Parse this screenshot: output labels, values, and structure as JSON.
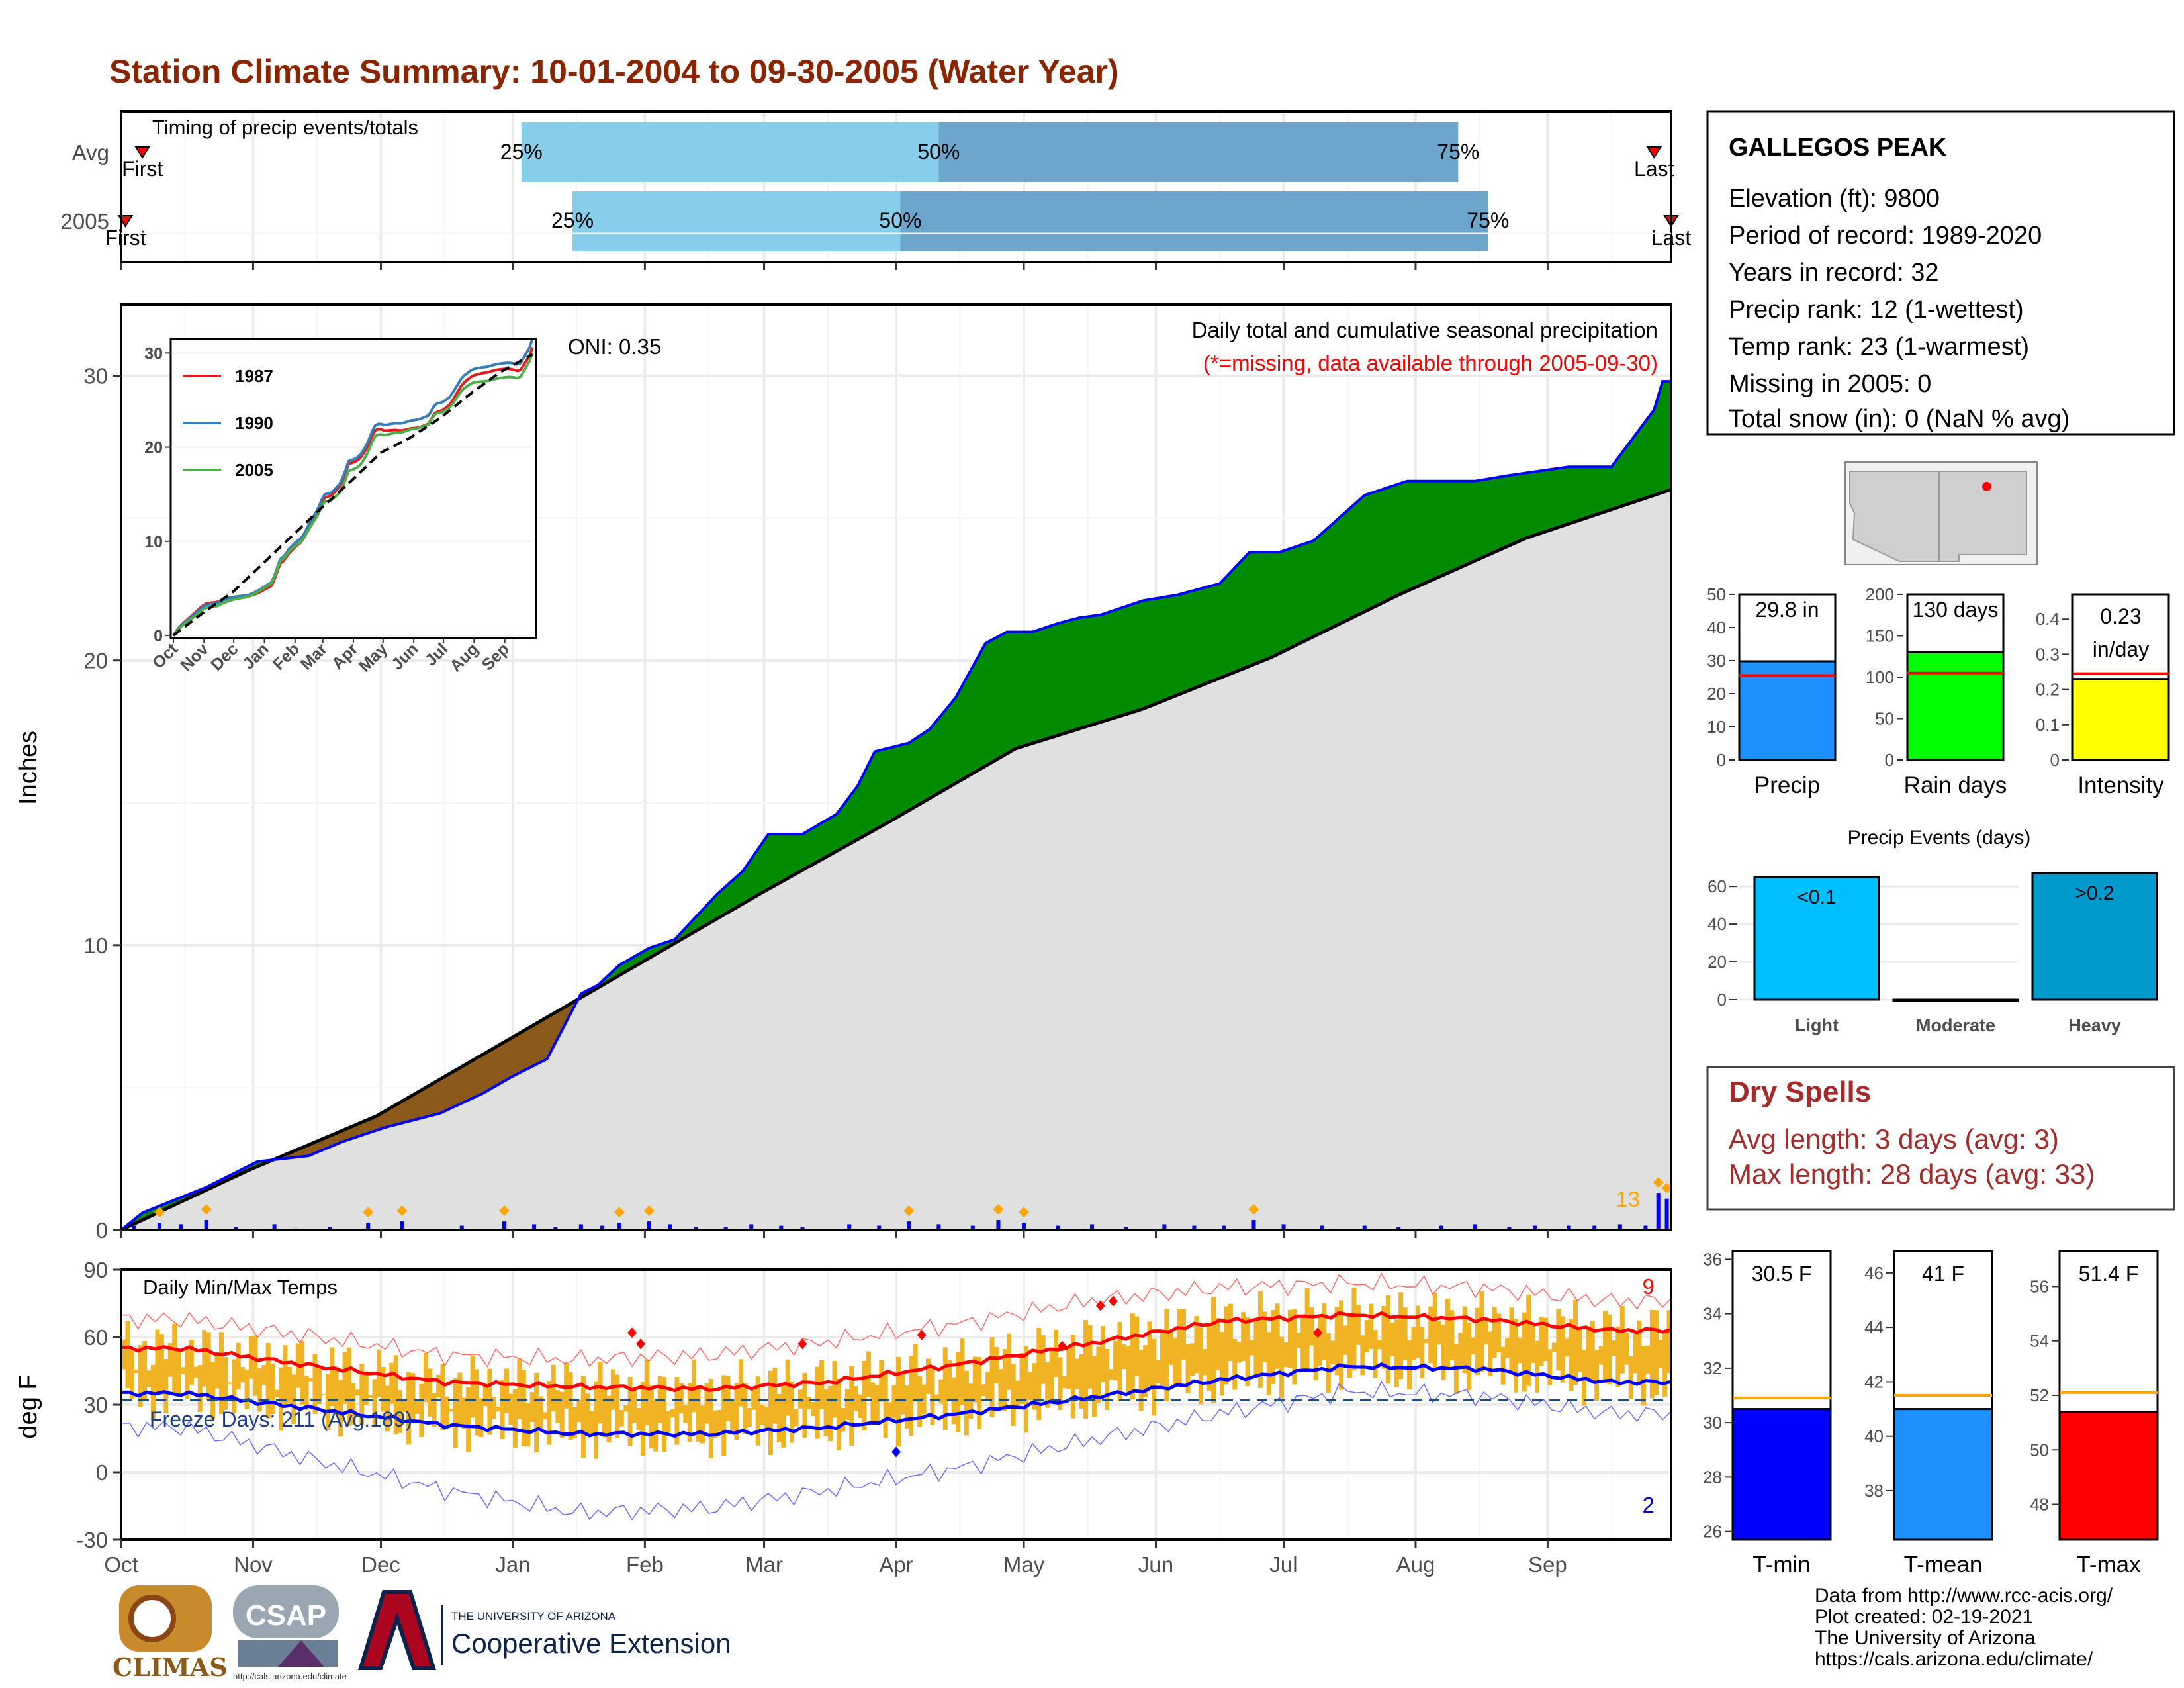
{
  "page": {
    "title": "Station Climate Summary: 10-01-2004 to 09-30-2005 (Water Year)"
  },
  "timing": {
    "label": "Timing of precip events/totals",
    "rows": [
      {
        "name": "Avg",
        "first_day": 5,
        "last_day": 360,
        "p25": 94,
        "p50": 192,
        "p75": 314,
        "first_label": "First",
        "last_label": "Last",
        "p25_label": "25%",
        "p50_label": "50%",
        "p75_label": "75%"
      },
      {
        "name": "2005",
        "first_day": 1,
        "last_day": 364,
        "p25": 106,
        "p50": 183,
        "p75": 321,
        "first_label": "First",
        "last_label": "Last",
        "p25_label": "25%",
        "p50_label": "50%",
        "p75_label": "75%"
      }
    ]
  },
  "precip_panel": {
    "ylabel": "Inches",
    "yticks": [
      0,
      10,
      20,
      30
    ],
    "ylim": [
      0,
      32.5
    ],
    "oni": "ONI: 0.35",
    "note1": "Daily total and cumulative seasonal precipitation",
    "note2": "(*=missing, data available through 2005-09-30)",
    "max_daily_label": "13"
  },
  "inset": {
    "xticks": [
      "Oct",
      "Nov",
      "Dec",
      "Jan",
      "Feb",
      "Mar",
      "Apr",
      "May",
      "Jun",
      "Jul",
      "Aug",
      "Sep"
    ],
    "yticks": [
      0,
      10,
      20,
      30
    ],
    "legend": [
      {
        "name": "1987",
        "color": "#e41a1c"
      },
      {
        "name": "1990",
        "color": "#377eb8"
      },
      {
        "name": "2005",
        "color": "#4daf4a"
      }
    ]
  },
  "temp_panel": {
    "ylabel": "deg F",
    "yticks": [
      -30,
      0,
      30,
      60,
      90
    ],
    "label": "Daily Min/Max Temps",
    "freeze": "Freeze Days: 211 (Avg:189)",
    "max_count": "9",
    "min_count": "2",
    "months": [
      "Oct",
      "Nov",
      "Dec",
      "Jan",
      "Feb",
      "Mar",
      "Apr",
      "May",
      "Jun",
      "Jul",
      "Aug",
      "Sep"
    ]
  },
  "station": {
    "name": "GALLEGOS PEAK",
    "lines": [
      "Elevation (ft): 9800",
      "Period of record: 1989-2020",
      "Years in record: 32",
      "Precip rank: 12 (1-wettest)",
      "Temp rank: 23 (1-warmest)",
      "Missing in 2005: 0",
      "Total snow (in): 0 (NaN % avg)"
    ]
  },
  "summary_bars": [
    {
      "label": "Precip",
      "value": 29.8,
      "text": "29.8 in",
      "avg": 25.5,
      "ymax": 50,
      "yticks": [
        0,
        10,
        20,
        30,
        40,
        50
      ],
      "color": "#1e90ff"
    },
    {
      "label": "Rain days",
      "value": 130,
      "text": "130 days",
      "avg": 105,
      "ymax": 200,
      "yticks": [
        0,
        50,
        100,
        150,
        200
      ],
      "color": "#00ff00"
    },
    {
      "label": "Intensity",
      "value": 0.23,
      "text": "0.23 in/day",
      "avg": 0.245,
      "ymax": 0.47,
      "yticks": [
        0.0,
        0.1,
        0.2,
        0.3,
        0.4
      ],
      "color": "#ffff00"
    }
  ],
  "events": {
    "title": "Precip Events (days)",
    "yticks": [
      0,
      20,
      40,
      60
    ],
    "bars": [
      {
        "label": "Light",
        "value": 65,
        "text": "<0.1",
        "color": "#00bfff"
      },
      {
        "label": "Moderate",
        "value": 0,
        "text": "",
        "color": "#1e90ff"
      },
      {
        "label": "Heavy",
        "value": 67,
        "text": ">0.2",
        "color": "#009acd"
      }
    ]
  },
  "dry_spells": {
    "title": "Dry Spells",
    "avg": "Avg length: 3 days (avg: 3)",
    "max": "Max length: 28 days (avg: 33)"
  },
  "temp_bars": [
    {
      "label": "T-min",
      "value": 30.5,
      "text": "30.5 F",
      "avg": 30.9,
      "ymin": 25.7,
      "ymax": 36.3,
      "yticks": [
        26,
        28,
        30,
        32,
        34,
        36
      ],
      "color": "#0000ff"
    },
    {
      "label": "T-mean",
      "value": 41,
      "text": "41 F",
      "avg": 41.5,
      "ymin": 36.2,
      "ymax": 46.8,
      "yticks": [
        38,
        40,
        42,
        44,
        46
      ],
      "color": "#1e90ff"
    },
    {
      "label": "T-max",
      "value": 51.4,
      "text": "51.4 F",
      "avg": 52.1,
      "ymin": 46.7,
      "ymax": 57.3,
      "yticks": [
        48,
        50,
        52,
        54,
        56
      ],
      "color": "#ff0000"
    }
  ],
  "credits": [
    "Data from http://www.rcc-acis.org/",
    "Plot created: 02-19-2021",
    "The University of Arizona",
    "https://cals.arizona.edu/climate/"
  ],
  "logos": {
    "climas": "CLIMAS",
    "csap": "CSAP",
    "csap_url": "http://cals.arizona.edu/climate",
    "ua_small": "THE UNIVERSITY OF ARIZONA",
    "ua_big": "Cooperative Extension"
  },
  "chart_data": {
    "type": "area",
    "title": "Daily total and cumulative seasonal precipitation",
    "ylabel": "Inches",
    "ylim": [
      0,
      32.5
    ],
    "x_unit": "day of water year (Oct 1 = day 0)",
    "cumulative_2005": {
      "x": [
        0,
        5,
        10,
        20,
        32,
        44,
        52,
        62,
        75,
        85,
        92,
        100,
        108,
        112,
        117,
        124,
        130,
        140,
        146,
        152,
        160,
        168,
        173,
        177,
        185,
        190,
        196,
        203,
        208,
        214,
        220,
        225,
        230,
        240,
        248,
        258,
        265,
        272,
        280,
        292,
        302,
        318,
        326,
        340,
        350,
        360,
        362,
        364
      ],
      "values": [
        0,
        0.6,
        0.9,
        1.5,
        2.4,
        2.6,
        3.1,
        3.6,
        4.1,
        4.8,
        5.4,
        6.0,
        8.3,
        8.6,
        9.3,
        9.9,
        10.2,
        11.8,
        12.6,
        13.9,
        13.9,
        14.6,
        15.6,
        16.8,
        17.1,
        17.6,
        18.7,
        20.6,
        21.0,
        21.0,
        21.3,
        21.5,
        21.6,
        22.1,
        22.3,
        22.7,
        23.8,
        23.8,
        24.2,
        25.8,
        26.3,
        26.3,
        26.5,
        26.8,
        26.8,
        28.8,
        29.8,
        29.8
      ]
    },
    "cumulative_avg": {
      "x": [
        0,
        30,
        60,
        90,
        120,
        150,
        180,
        210,
        240,
        270,
        300,
        330,
        364
      ],
      "values": [
        0,
        2.1,
        4.0,
        6.6,
        9.2,
        11.8,
        14.3,
        16.9,
        18.3,
        20.1,
        22.3,
        24.3,
        26.0
      ]
    },
    "daily_precip": {
      "x": [
        3,
        9,
        14,
        20,
        27,
        36,
        41,
        49,
        58,
        66,
        80,
        90,
        97,
        102,
        108,
        113,
        117,
        124,
        129,
        135,
        142,
        148,
        155,
        160,
        171,
        178,
        185,
        192,
        200,
        206,
        212,
        220,
        228,
        236,
        245,
        252,
        259,
        266,
        273,
        282,
        292,
        300,
        310,
        318,
        326,
        332,
        340,
        346,
        352,
        358,
        361,
        363
      ],
      "values": [
        0.15,
        0.25,
        0.2,
        0.35,
        0.1,
        0.2,
        0.05,
        0.1,
        0.25,
        0.3,
        0.15,
        0.3,
        0.2,
        0.1,
        0.2,
        0.15,
        0.25,
        0.3,
        0.2,
        0.1,
        0.1,
        0.2,
        0.15,
        0.1,
        0.2,
        0.15,
        0.3,
        0.2,
        0.15,
        0.35,
        0.25,
        0.15,
        0.2,
        0.1,
        0.2,
        0.15,
        0.15,
        0.35,
        0.2,
        0.15,
        0.15,
        0.1,
        0.15,
        0.2,
        0.1,
        0.15,
        0.15,
        0.15,
        0.2,
        0.15,
        1.3,
        1.1
      ]
    },
    "daily_temp_monthly": {
      "months": [
        "Oct",
        "Nov",
        "Dec",
        "Jan",
        "Feb",
        "Mar",
        "Apr",
        "May",
        "Jun",
        "Jul",
        "Aug",
        "Sep"
      ],
      "tmax_avg": [
        55,
        47,
        40,
        38,
        37,
        40,
        48,
        57,
        67,
        70,
        68,
        63
      ],
      "tmin_avg": [
        35,
        28,
        21,
        17,
        17,
        20,
        26,
        33,
        41,
        47,
        46,
        40
      ],
      "record_max": [
        68,
        60,
        52,
        50,
        52,
        58,
        66,
        76,
        82,
        84,
        82,
        76
      ],
      "record_min": [
        20,
        5,
        -8,
        -18,
        -16,
        -8,
        2,
        14,
        26,
        36,
        34,
        26
      ]
    },
    "temp_ylim": [
      -30,
      90
    ]
  }
}
